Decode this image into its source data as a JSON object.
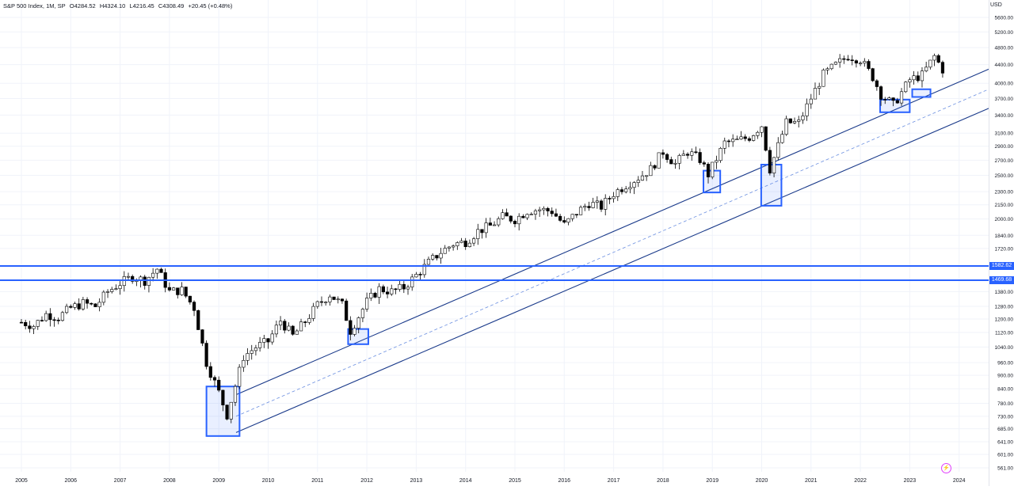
{
  "header": {
    "symbol": "S&P 500 Index, 1M, SP",
    "open": "O4284.52",
    "high": "H4324.10",
    "low": "L4216.45",
    "close": "C4308.49",
    "change": "+20.45 (+0.48%)"
  },
  "currency": "USD",
  "levels": {
    "upper": "1582.62",
    "lower": "1469.68"
  },
  "colors": {
    "up": "#ffffff",
    "down": "#000000",
    "channel": "#1a3a8a",
    "level": "#2962ff",
    "box": "#2962ff"
  },
  "chart_data": {
    "type": "candlestick",
    "title": "S&P 500 Index, 1M, SP",
    "scale": "log",
    "ylim": [
      561,
      5600
    ],
    "xlim": [
      "2005-01",
      "2024-01"
    ],
    "y_ticks": [
      "5600.00",
      "5200.00",
      "4800.00",
      "4400.00",
      "4000.00",
      "3700.00",
      "3400.00",
      "3100.00",
      "2900.00",
      "2700.00",
      "2500.00",
      "2300.00",
      "2150.00",
      "2000.00",
      "1840.00",
      "1720.00",
      "1380.00",
      "1280.00",
      "1200.00",
      "1120.00",
      "1040.00",
      "960.00",
      "900.00",
      "840.00",
      "780.00",
      "730.00",
      "685.00",
      "641.00",
      "601.00",
      "561.00"
    ],
    "x_ticks": [
      "2005",
      "2006",
      "2007",
      "2008",
      "2009",
      "2010",
      "2011",
      "2012",
      "2013",
      "2014",
      "2015",
      "2016",
      "2017",
      "2018",
      "2019",
      "2020",
      "2021",
      "2022",
      "2023",
      "2024"
    ],
    "series": [
      {
        "points": [
          {
            "x": "2005-01",
            "y": 1180
          },
          {
            "x": "2005-04",
            "y": 1160
          },
          {
            "x": "2005-07",
            "y": 1230
          },
          {
            "x": "2005-10",
            "y": 1210
          },
          {
            "x": "2006-01",
            "y": 1270
          },
          {
            "x": "2006-04",
            "y": 1300
          },
          {
            "x": "2006-07",
            "y": 1280
          },
          {
            "x": "2006-10",
            "y": 1380
          },
          {
            "x": "2007-01",
            "y": 1440
          },
          {
            "x": "2007-04",
            "y": 1490
          },
          {
            "x": "2007-07",
            "y": 1460
          },
          {
            "x": "2007-10",
            "y": 1550
          },
          {
            "x": "2008-01",
            "y": 1380
          },
          {
            "x": "2008-04",
            "y": 1390
          },
          {
            "x": "2008-07",
            "y": 1270
          },
          {
            "x": "2008-10",
            "y": 960
          },
          {
            "x": "2009-01",
            "y": 825
          },
          {
            "x": "2009-03",
            "y": 735
          },
          {
            "x": "2009-07",
            "y": 990
          },
          {
            "x": "2009-10",
            "y": 1040
          },
          {
            "x": "2010-01",
            "y": 1070
          },
          {
            "x": "2010-04",
            "y": 1190
          },
          {
            "x": "2010-07",
            "y": 1100
          },
          {
            "x": "2010-10",
            "y": 1185
          },
          {
            "x": "2011-01",
            "y": 1290
          },
          {
            "x": "2011-04",
            "y": 1360
          },
          {
            "x": "2011-07",
            "y": 1290
          },
          {
            "x": "2011-09",
            "y": 1130
          },
          {
            "x": "2012-01",
            "y": 1310
          },
          {
            "x": "2012-04",
            "y": 1400
          },
          {
            "x": "2012-07",
            "y": 1380
          },
          {
            "x": "2012-10",
            "y": 1410
          },
          {
            "x": "2013-01",
            "y": 1500
          },
          {
            "x": "2013-04",
            "y": 1600
          },
          {
            "x": "2013-07",
            "y": 1690
          },
          {
            "x": "2013-10",
            "y": 1760
          },
          {
            "x": "2014-01",
            "y": 1780
          },
          {
            "x": "2014-04",
            "y": 1880
          },
          {
            "x": "2014-07",
            "y": 1930
          },
          {
            "x": "2014-10",
            "y": 2020
          },
          {
            "x": "2015-01",
            "y": 1995
          },
          {
            "x": "2015-04",
            "y": 2085
          },
          {
            "x": "2015-07",
            "y": 2100
          },
          {
            "x": "2015-10",
            "y": 2080
          },
          {
            "x": "2016-01",
            "y": 1940
          },
          {
            "x": "2016-04",
            "y": 2065
          },
          {
            "x": "2016-07",
            "y": 2170
          },
          {
            "x": "2016-10",
            "y": 2130
          },
          {
            "x": "2017-01",
            "y": 2280
          },
          {
            "x": "2017-04",
            "y": 2380
          },
          {
            "x": "2017-07",
            "y": 2470
          },
          {
            "x": "2017-10",
            "y": 2580
          },
          {
            "x": "2018-01",
            "y": 2820
          },
          {
            "x": "2018-04",
            "y": 2650
          },
          {
            "x": "2018-07",
            "y": 2820
          },
          {
            "x": "2018-10",
            "y": 2710
          },
          {
            "x": "2018-12",
            "y": 2510
          },
          {
            "x": "2019-04",
            "y": 2950
          },
          {
            "x": "2019-07",
            "y": 2980
          },
          {
            "x": "2019-10",
            "y": 3040
          },
          {
            "x": "2020-01",
            "y": 3230
          },
          {
            "x": "2020-03",
            "y": 2580
          },
          {
            "x": "2020-07",
            "y": 3270
          },
          {
            "x": "2020-10",
            "y": 3270
          },
          {
            "x": "2021-01",
            "y": 3710
          },
          {
            "x": "2021-04",
            "y": 4180
          },
          {
            "x": "2021-07",
            "y": 4390
          },
          {
            "x": "2021-10",
            "y": 4600
          },
          {
            "x": "2022-01",
            "y": 4520
          },
          {
            "x": "2022-04",
            "y": 4130
          },
          {
            "x": "2022-06",
            "y": 3780
          },
          {
            "x": "2022-09",
            "y": 3580
          },
          {
            "x": "2023-01",
            "y": 4070
          },
          {
            "x": "2023-04",
            "y": 4170
          },
          {
            "x": "2023-07",
            "y": 4590
          },
          {
            "x": "2023-09",
            "y": 4290
          }
        ]
      }
    ],
    "horizontal_levels": [
      1582.62,
      1469.68
    ],
    "annotations": [
      {
        "type": "channel",
        "from": "2009-03",
        "to": "2024-01"
      },
      {
        "type": "box",
        "around": "2009-03"
      },
      {
        "type": "box",
        "around": "2011-09"
      },
      {
        "type": "box",
        "around": "2018-12"
      },
      {
        "type": "box",
        "around": "2020-03"
      },
      {
        "type": "box",
        "around": "2022-09"
      },
      {
        "type": "box",
        "around": "2023-03"
      }
    ]
  }
}
